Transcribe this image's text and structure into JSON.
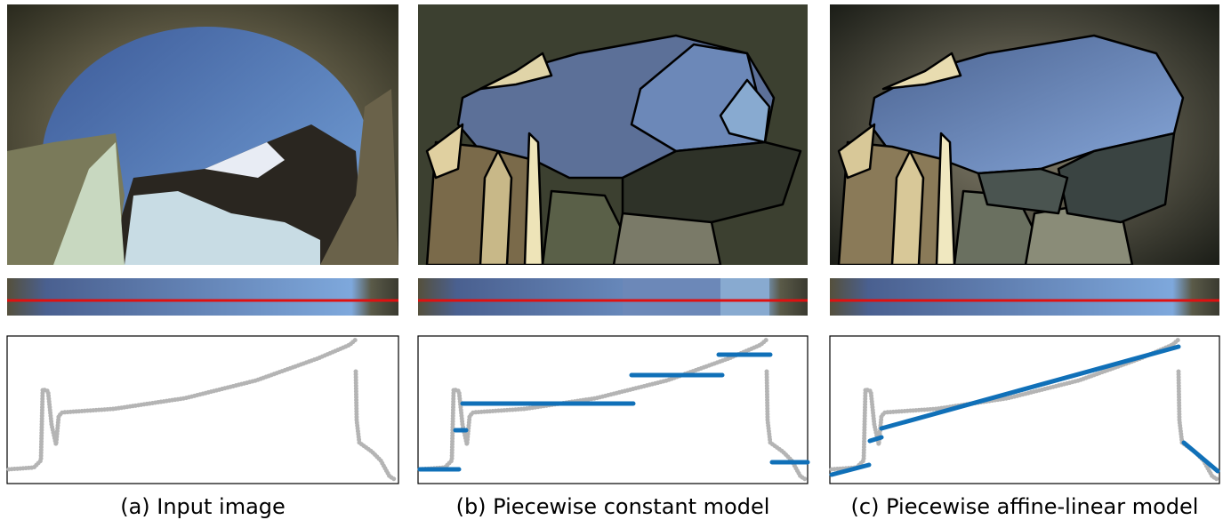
{
  "captions": [
    "(a) Input image",
    "(b) Piecewise constant model",
    "(c) Piecewise affine-linear model"
  ]
}
